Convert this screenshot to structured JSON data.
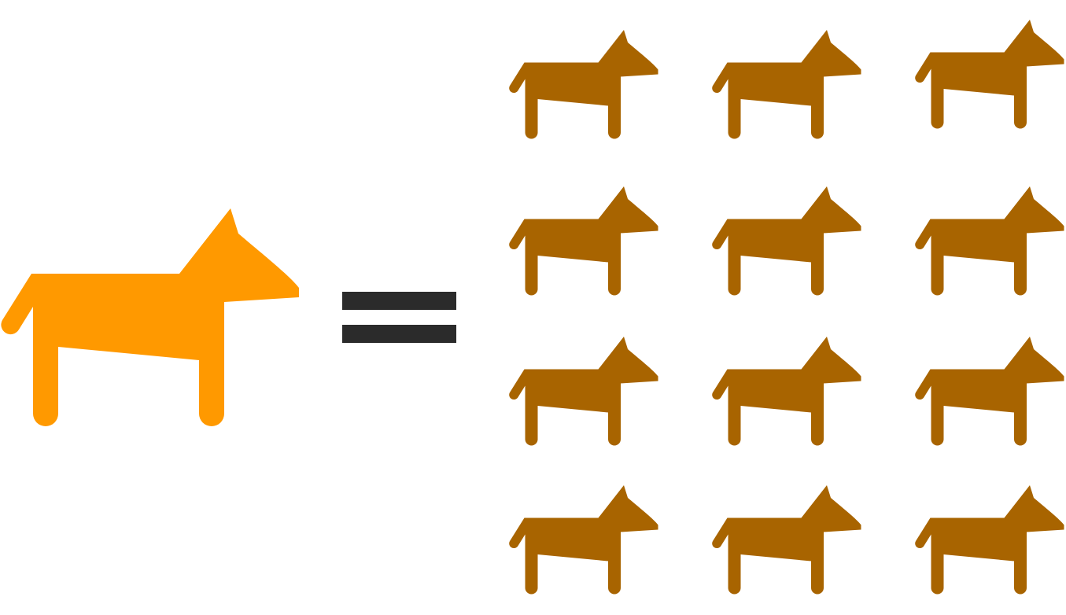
{
  "equation": {
    "left": {
      "count": 1,
      "icon": "horse-icon",
      "color": "#FF9900"
    },
    "operator": {
      "symbol": "equals",
      "icon": "equals-icon",
      "color": "#2B2B2B"
    },
    "right": {
      "count": 12,
      "rows": 4,
      "columns": 3,
      "icon": "horse-icon",
      "color": "#A86400"
    }
  }
}
